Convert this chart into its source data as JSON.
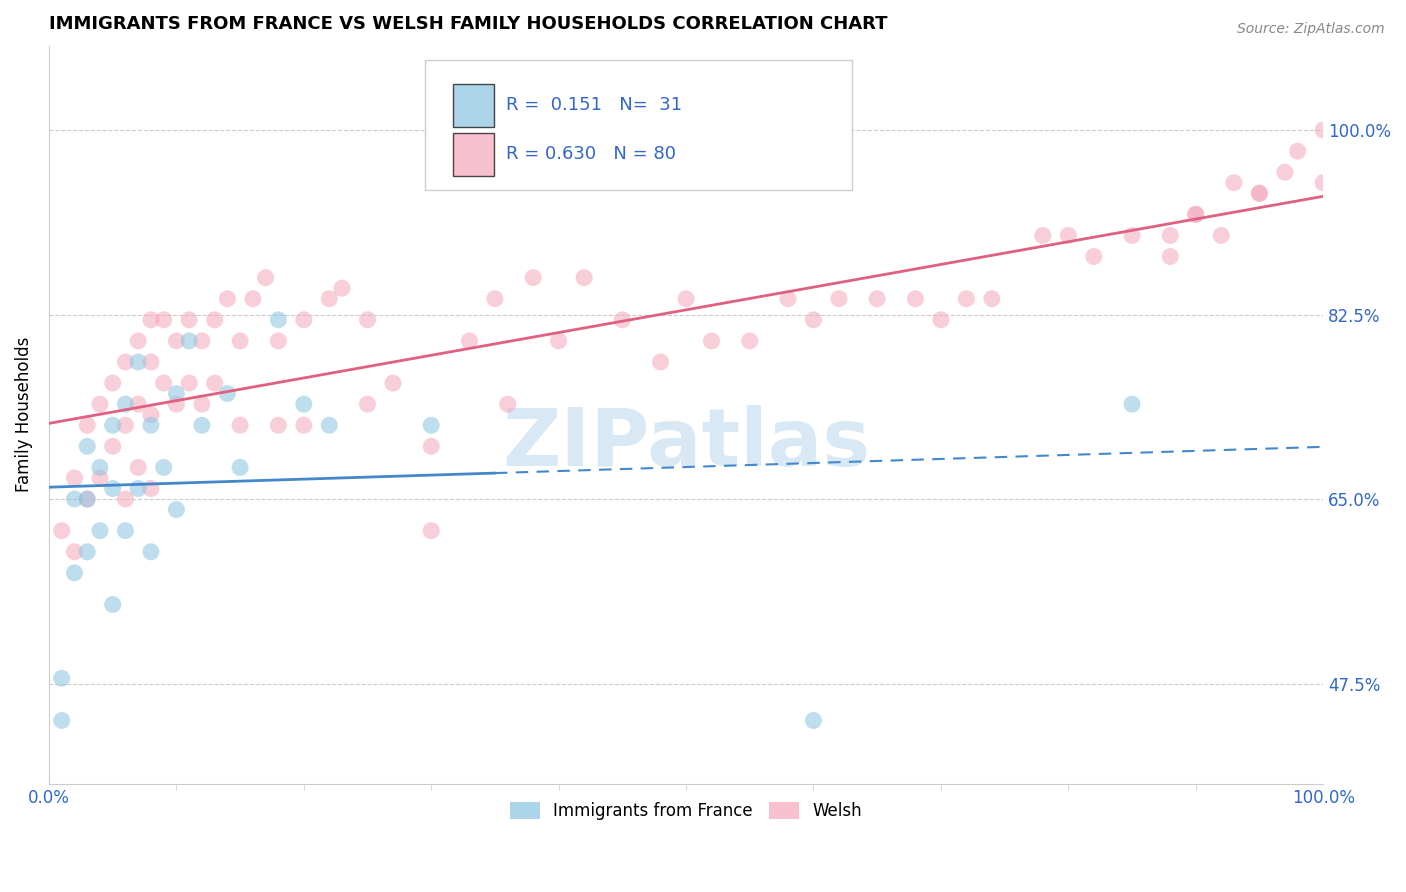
{
  "title": "IMMIGRANTS FROM FRANCE VS WELSH FAMILY HOUSEHOLDS CORRELATION CHART",
  "source": "Source: ZipAtlas.com",
  "ylabel": "Family Households",
  "legend_labels": [
    "Immigrants from France",
    "Welsh"
  ],
  "r_blue": 0.151,
  "n_blue": 31,
  "r_pink": 0.63,
  "n_pink": 80,
  "blue_color": "#89c4e1",
  "pink_color": "#f4a7bb",
  "blue_line_color": "#4488cc",
  "pink_line_color": "#e06080",
  "xlim": [
    0,
    100
  ],
  "ylim": [
    38,
    108
  ],
  "yticks": [
    47.5,
    65.0,
    82.5,
    100.0
  ],
  "blue_scatter_x": [
    1,
    1,
    2,
    2,
    3,
    3,
    3,
    4,
    4,
    5,
    5,
    5,
    6,
    6,
    7,
    7,
    8,
    8,
    9,
    10,
    10,
    11,
    12,
    14,
    15,
    18,
    20,
    22,
    30,
    60,
    85
  ],
  "blue_scatter_y": [
    48,
    44,
    65,
    58,
    70,
    65,
    60,
    68,
    62,
    72,
    66,
    55,
    74,
    62,
    78,
    66,
    72,
    60,
    68,
    75,
    64,
    80,
    72,
    75,
    68,
    82,
    74,
    72,
    72,
    44,
    74
  ],
  "pink_scatter_x": [
    1,
    2,
    2,
    3,
    3,
    4,
    4,
    5,
    5,
    6,
    6,
    6,
    7,
    7,
    7,
    8,
    8,
    8,
    8,
    9,
    9,
    10,
    10,
    11,
    11,
    12,
    12,
    13,
    13,
    14,
    15,
    15,
    16,
    17,
    18,
    18,
    20,
    20,
    22,
    23,
    25,
    25,
    27,
    30,
    30,
    33,
    35,
    36,
    38,
    40,
    42,
    45,
    48,
    50,
    52,
    55,
    58,
    60,
    62,
    65,
    68,
    70,
    72,
    74,
    78,
    80,
    82,
    85,
    90,
    93,
    95,
    97,
    98,
    100,
    100,
    88,
    88,
    90,
    92,
    95
  ],
  "pink_scatter_y": [
    62,
    67,
    60,
    72,
    65,
    74,
    67,
    76,
    70,
    78,
    72,
    65,
    80,
    74,
    68,
    82,
    78,
    73,
    66,
    82,
    76,
    80,
    74,
    82,
    76,
    80,
    74,
    82,
    76,
    84,
    80,
    72,
    84,
    86,
    80,
    72,
    82,
    72,
    84,
    85,
    82,
    74,
    76,
    70,
    62,
    80,
    84,
    74,
    86,
    80,
    86,
    82,
    78,
    84,
    80,
    80,
    84,
    82,
    84,
    84,
    84,
    82,
    84,
    84,
    90,
    90,
    88,
    90,
    92,
    95,
    94,
    96,
    98,
    100,
    95,
    90,
    88,
    92,
    90,
    94
  ],
  "blue_max_x_solid": 35,
  "watermark_text": "ZIPatlas",
  "watermark_color": "#c8dff0"
}
